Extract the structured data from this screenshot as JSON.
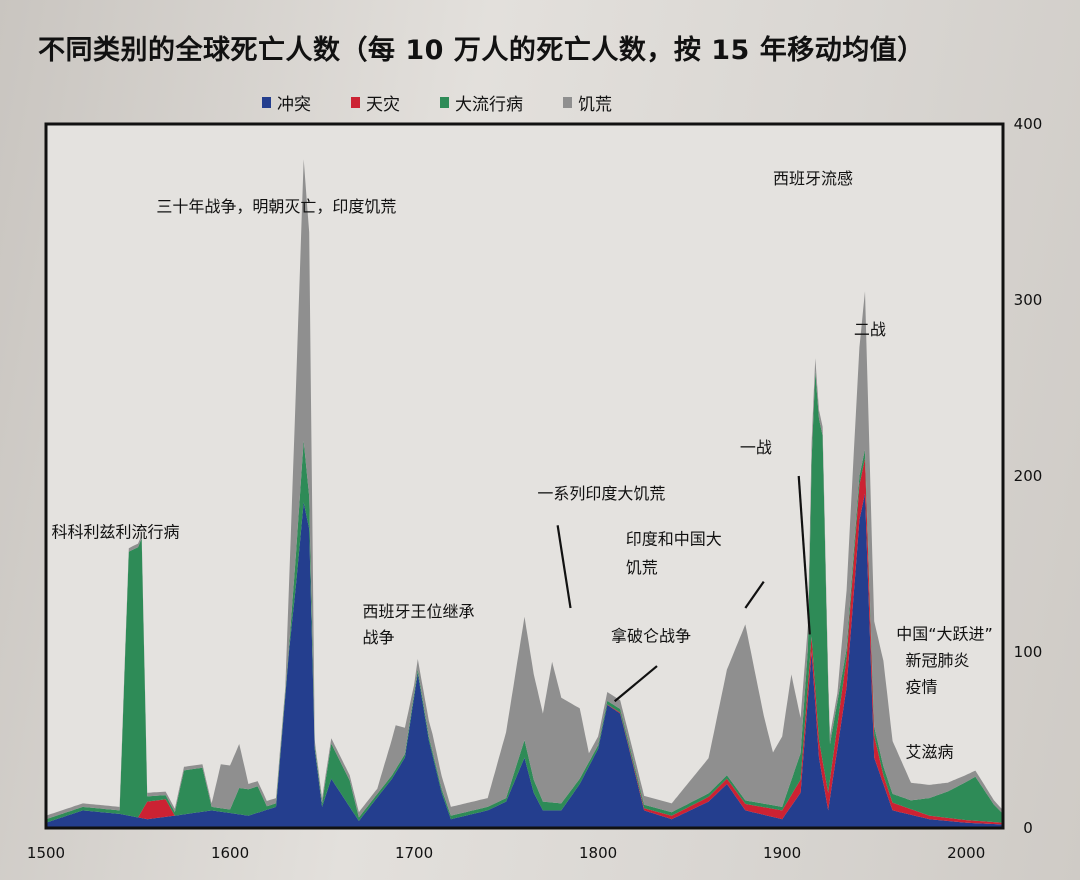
{
  "title": "不同类别的全球死亡人数（每 10 万人的死亡人数，按 15 年移动均值）",
  "colors": {
    "conflict": "#243e8e",
    "disaster": "#cc2233",
    "epidemic": "#2e8b57",
    "famine": "#8f8f8f",
    "page": "#dad6d1",
    "plot_bg": "#e4e2df"
  },
  "chart_data": {
    "type": "area",
    "stacked": true,
    "title": "不同类别的全球死亡人数（每 10 万人的死亡人数，按 15 年移动均值）",
    "xlim": [
      1500,
      2020
    ],
    "ylim": [
      0,
      400
    ],
    "x_ticks": [
      "1500",
      "1600",
      "1700",
      "1800",
      "1900",
      "2000"
    ],
    "y_ticks": [
      "0",
      "100",
      "200",
      "300",
      "400"
    ],
    "y_axis_side": "right",
    "legend": {
      "placement": "top",
      "entries": [
        "冲突",
        "天灾",
        "大流行病",
        "饥荒"
      ]
    },
    "series": [
      {
        "name": "冲突",
        "color_key": "conflict",
        "points": [
          [
            1500,
            3
          ],
          [
            1520,
            10
          ],
          [
            1540,
            8
          ],
          [
            1555,
            5
          ],
          [
            1570,
            7
          ],
          [
            1590,
            10
          ],
          [
            1610,
            7
          ],
          [
            1625,
            12
          ],
          [
            1632,
            100
          ],
          [
            1636,
            140
          ],
          [
            1640,
            185
          ],
          [
            1643,
            170
          ],
          [
            1646,
            45
          ],
          [
            1650,
            12
          ],
          [
            1655,
            28
          ],
          [
            1665,
            12
          ],
          [
            1670,
            4
          ],
          [
            1688,
            28
          ],
          [
            1695,
            40
          ],
          [
            1702,
            88
          ],
          [
            1708,
            50
          ],
          [
            1715,
            20
          ],
          [
            1720,
            5
          ],
          [
            1740,
            10
          ],
          [
            1750,
            15
          ],
          [
            1760,
            40
          ],
          [
            1765,
            20
          ],
          [
            1770,
            10
          ],
          [
            1780,
            10
          ],
          [
            1790,
            25
          ],
          [
            1800,
            45
          ],
          [
            1805,
            70
          ],
          [
            1812,
            65
          ],
          [
            1818,
            40
          ],
          [
            1825,
            10
          ],
          [
            1840,
            5
          ],
          [
            1860,
            15
          ],
          [
            1870,
            25
          ],
          [
            1880,
            10
          ],
          [
            1900,
            5
          ],
          [
            1910,
            20
          ],
          [
            1916,
            100
          ],
          [
            1920,
            40
          ],
          [
            1925,
            10
          ],
          [
            1935,
            80
          ],
          [
            1942,
            175
          ],
          [
            1945,
            190
          ],
          [
            1950,
            40
          ],
          [
            1960,
            10
          ],
          [
            1980,
            5
          ],
          [
            2000,
            3
          ],
          [
            2020,
            2
          ]
        ]
      },
      {
        "name": "天灾",
        "color_key": "disaster",
        "points": [
          [
            1500,
            0
          ],
          [
            1550,
            0
          ],
          [
            1555,
            10
          ],
          [
            1565,
            10
          ],
          [
            1570,
            0
          ],
          [
            1800,
            0
          ],
          [
            1840,
            2
          ],
          [
            1870,
            3
          ],
          [
            1900,
            5
          ],
          [
            1920,
            10
          ],
          [
            1925,
            10
          ],
          [
            1940,
            20
          ],
          [
            1945,
            20
          ],
          [
            1955,
            5
          ],
          [
            1980,
            2
          ],
          [
            2020,
            1
          ]
        ]
      },
      {
        "name": "大流行病",
        "color_key": "epidemic",
        "points": [
          [
            1500,
            2
          ],
          [
            1540,
            2
          ],
          [
            1545,
            150
          ],
          [
            1552,
            155
          ],
          [
            1555,
            3
          ],
          [
            1570,
            2
          ],
          [
            1575,
            25
          ],
          [
            1585,
            25
          ],
          [
            1590,
            2
          ],
          [
            1600,
            2
          ],
          [
            1605,
            15
          ],
          [
            1615,
            15
          ],
          [
            1620,
            2
          ],
          [
            1632,
            2
          ],
          [
            1640,
            35
          ],
          [
            1646,
            2
          ],
          [
            1650,
            2
          ],
          [
            1655,
            20
          ],
          [
            1665,
            15
          ],
          [
            1670,
            2
          ],
          [
            1750,
            2
          ],
          [
            1760,
            10
          ],
          [
            1770,
            5
          ],
          [
            1800,
            2
          ],
          [
            1900,
            2
          ],
          [
            1910,
            15
          ],
          [
            1914,
            20
          ],
          [
            1918,
            180
          ],
          [
            1922,
            185
          ],
          [
            1926,
            20
          ],
          [
            1935,
            5
          ],
          [
            1950,
            5
          ],
          [
            1970,
            5
          ],
          [
            1990,
            15
          ],
          [
            2005,
            25
          ],
          [
            2015,
            10
          ],
          [
            2020,
            5
          ]
        ]
      },
      {
        "name": "饥荒",
        "color_key": "famine",
        "points": [
          [
            1500,
            2
          ],
          [
            1590,
            2
          ],
          [
            1595,
            25
          ],
          [
            1605,
            25
          ],
          [
            1610,
            3
          ],
          [
            1630,
            3
          ],
          [
            1640,
            160
          ],
          [
            1643,
            150
          ],
          [
            1646,
            3
          ],
          [
            1650,
            3
          ],
          [
            1680,
            3
          ],
          [
            1690,
            25
          ],
          [
            1700,
            5
          ],
          [
            1710,
            10
          ],
          [
            1720,
            5
          ],
          [
            1740,
            5
          ],
          [
            1760,
            70
          ],
          [
            1770,
            50
          ],
          [
            1775,
            80
          ],
          [
            1780,
            60
          ],
          [
            1790,
            40
          ],
          [
            1795,
            5
          ],
          [
            1840,
            5
          ],
          [
            1860,
            20
          ],
          [
            1870,
            60
          ],
          [
            1880,
            100
          ],
          [
            1890,
            50
          ],
          [
            1895,
            30
          ],
          [
            1900,
            40
          ],
          [
            1905,
            60
          ],
          [
            1910,
            20
          ],
          [
            1916,
            10
          ],
          [
            1920,
            5
          ],
          [
            1930,
            5
          ],
          [
            1945,
            90
          ],
          [
            1950,
            60
          ],
          [
            1955,
            60
          ],
          [
            1960,
            30
          ],
          [
            1970,
            10
          ],
          [
            1990,
            5
          ],
          [
            2020,
            2
          ]
        ]
      }
    ],
    "annotations": [
      {
        "text": "三十年战争，明朝灭亡，印度饥荒"
      },
      {
        "text": "科科利兹利流行病"
      },
      {
        "text": "西班牙王位继承"
      },
      {
        "text": "战争"
      },
      {
        "text": "一系列印度大饥荒"
      },
      {
        "text": "印度和中国大"
      },
      {
        "text": "饥荒"
      },
      {
        "text": "拿破仑战争"
      },
      {
        "text": "西班牙流感"
      },
      {
        "text": "一战"
      },
      {
        "text": "二战"
      },
      {
        "text": "中国“大跃进”"
      },
      {
        "text": "新冠肺炎"
      },
      {
        "text": "疫情"
      },
      {
        "text": "艾滋病"
      }
    ]
  }
}
